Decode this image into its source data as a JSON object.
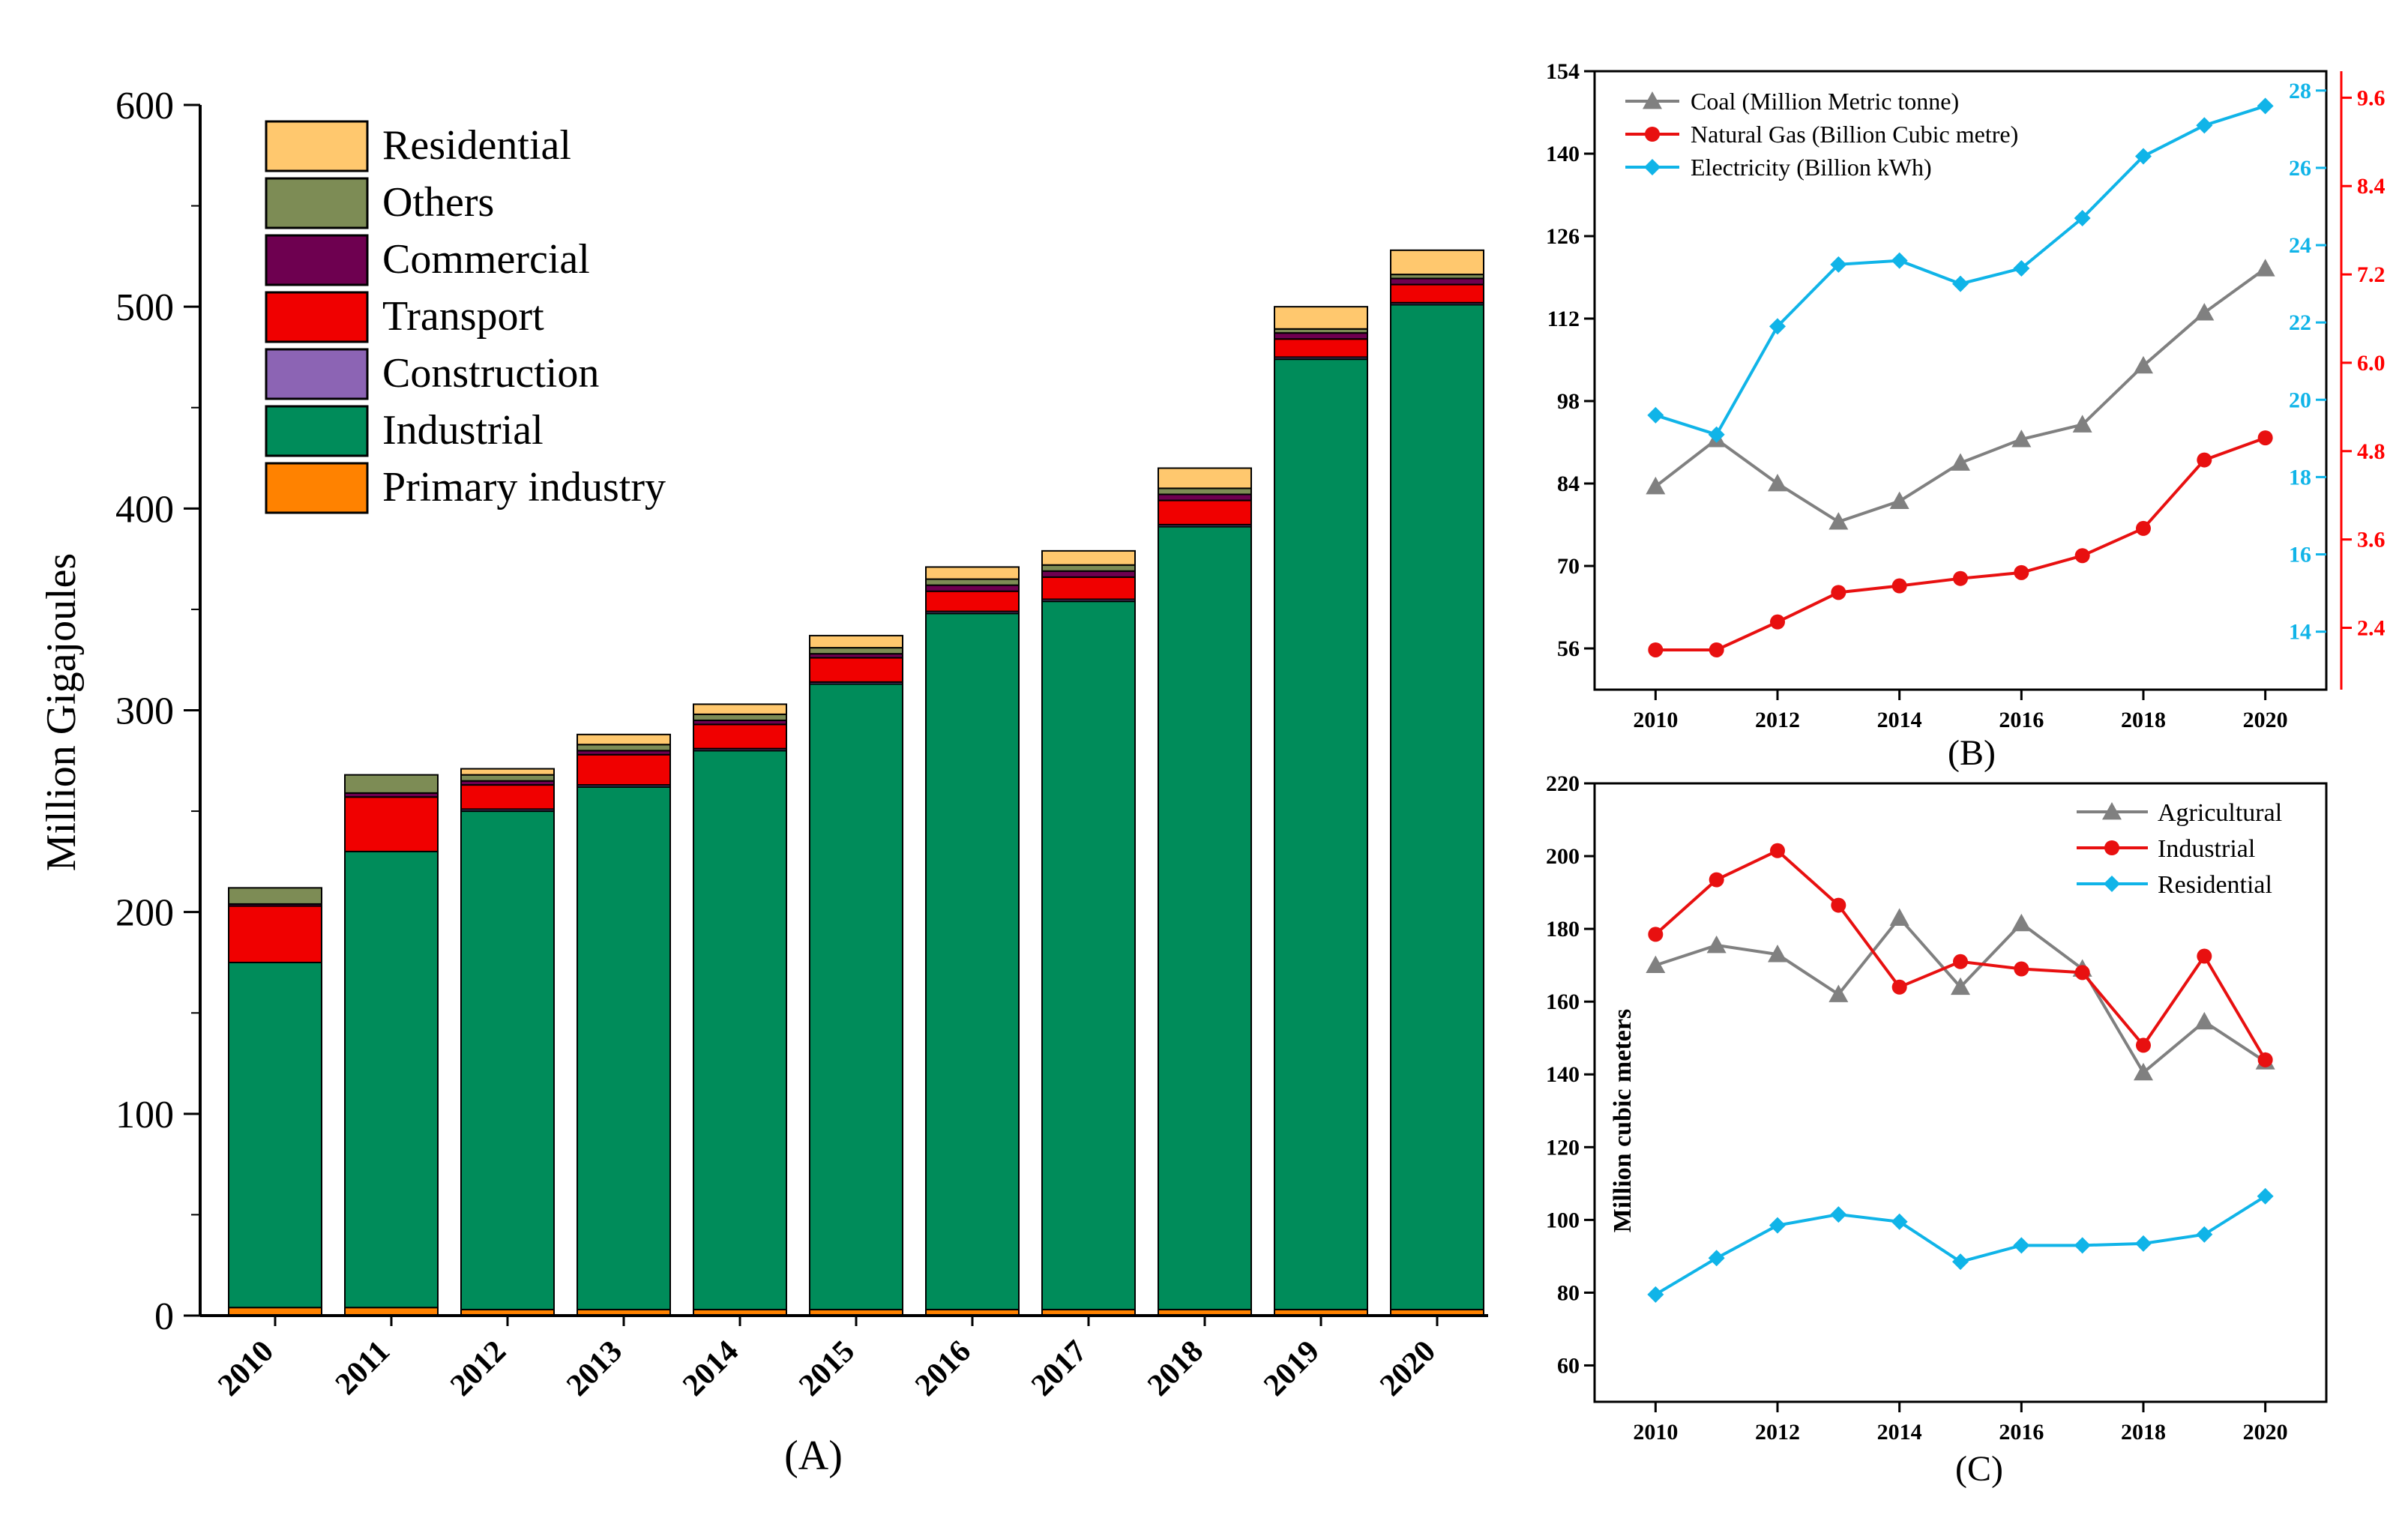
{
  "colors": {
    "primary": "#FF8200",
    "industrial": "#008C5A",
    "construction": "#8C64B4",
    "transport": "#F00000",
    "commercial": "#6E0050",
    "others": "#7D8C55",
    "residential": "#FFC86E",
    "coal": "#808080",
    "gas": "#E81010",
    "electricity": "#10B4E8"
  },
  "panels": {
    "a": {
      "label": "(A)",
      "ylabel": "Million Gigajoules",
      "yticks": [
        "0",
        "100",
        "200",
        "300",
        "400",
        "500",
        "600"
      ]
    },
    "b": {
      "label": "(B)",
      "left_ticks": [
        "56",
        "70",
        "84",
        "98",
        "112",
        "126",
        "140",
        "154"
      ],
      "right_ticks_1": [
        "14",
        "16",
        "18",
        "20",
        "22",
        "24",
        "26",
        "28"
      ],
      "right_ticks_2": [
        "2.4",
        "3.6",
        "4.8",
        "6.0",
        "7.2",
        "8.4",
        "9.6"
      ],
      "xticks": [
        "2010",
        "2012",
        "2014",
        "2016",
        "2018",
        "2020"
      ]
    },
    "c": {
      "label": "(C)",
      "ylabel": "Million cubic meters",
      "yticks": [
        "60",
        "80",
        "100",
        "120",
        "140",
        "160",
        "180",
        "200",
        "220"
      ],
      "xticks": [
        "2010",
        "2012",
        "2014",
        "2016",
        "2018",
        "2020"
      ]
    }
  },
  "chart_data": [
    {
      "type": "bar",
      "stacked": true,
      "title": "(A)",
      "xlabel": "",
      "ylabel": "Million Gigajoules",
      "ylim": [
        0,
        600
      ],
      "categories": [
        "2010",
        "2011",
        "2012",
        "2013",
        "2014",
        "2015",
        "2016",
        "2017",
        "2018",
        "2019",
        "2020"
      ],
      "series": [
        {
          "name": "Primary industry",
          "values": [
            4,
            4,
            3,
            3,
            3,
            3,
            3,
            3,
            3,
            3,
            3
          ]
        },
        {
          "name": "Industrial",
          "values": [
            171,
            226,
            247,
            259,
            277,
            310,
            345,
            351,
            388,
            471,
            498
          ]
        },
        {
          "name": "Construction",
          "values": [
            0,
            0,
            1,
            1,
            1,
            1,
            1,
            1,
            1,
            1,
            1
          ]
        },
        {
          "name": "Transport",
          "values": [
            28,
            27,
            12,
            15,
            12,
            12,
            10,
            11,
            12,
            9,
            9
          ]
        },
        {
          "name": "Commercial",
          "values": [
            1,
            2,
            2,
            2,
            2,
            2,
            3,
            3,
            3,
            3,
            3
          ]
        },
        {
          "name": "Others",
          "values": [
            8,
            9,
            3,
            3,
            3,
            3,
            3,
            3,
            3,
            2,
            2
          ]
        },
        {
          "name": "Residential",
          "values": [
            0,
            0,
            3,
            5,
            5,
            6,
            6,
            7,
            10,
            11,
            12
          ]
        }
      ],
      "legend": "top-left"
    },
    {
      "type": "line",
      "title": "(B)",
      "xlabel": "",
      "x": [
        2010,
        2011,
        2012,
        2013,
        2014,
        2015,
        2016,
        2017,
        2018,
        2019,
        2020
      ],
      "xlim": [
        2009,
        2021
      ],
      "series": [
        {
          "name": "Coal (Million Metric tonne)",
          "axis": "left",
          "ylim": [
            49,
            154
          ],
          "values": [
            83.5,
            91.5,
            84,
            77.5,
            81,
            87.5,
            91.5,
            94,
            104,
            113,
            120.5
          ]
        },
        {
          "name": "Natural Gas (Billion Cubic metre)",
          "axis": "right-outer",
          "ylim": [
            1.56,
            9.96
          ],
          "values": [
            2.1,
            2.1,
            2.48,
            2.88,
            2.97,
            3.07,
            3.15,
            3.38,
            3.75,
            4.68,
            4.98
          ]
        },
        {
          "name": "Electricity (Billion kWh)",
          "axis": "right-inner",
          "ylim": [
            12.5,
            28.5
          ],
          "values": [
            19.6,
            19.1,
            21.9,
            23.5,
            23.6,
            23.0,
            23.4,
            24.7,
            26.3,
            27.1,
            27.6
          ]
        }
      ],
      "legend": "top-left"
    },
    {
      "type": "line",
      "title": "(C)",
      "xlabel": "",
      "ylabel": "Million cubic meters",
      "x": [
        2010,
        2011,
        2012,
        2013,
        2014,
        2015,
        2016,
        2017,
        2018,
        2019,
        2020
      ],
      "xlim": [
        2009,
        2021
      ],
      "ylim": [
        50,
        220
      ],
      "series": [
        {
          "name": "Agricultural",
          "values": [
            170,
            175.5,
            173,
            162,
            183,
            164,
            181.5,
            169,
            140.5,
            154.5,
            143.5
          ]
        },
        {
          "name": "Industrial",
          "values": [
            178.5,
            193.5,
            201.5,
            186.5,
            164,
            171,
            169,
            168,
            148,
            172.5,
            144
          ]
        },
        {
          "name": "Residential",
          "values": [
            79.5,
            89.5,
            98.5,
            101.5,
            99.5,
            88.5,
            93,
            93,
            93.5,
            96,
            106.5
          ]
        }
      ],
      "legend": "top-right"
    }
  ]
}
